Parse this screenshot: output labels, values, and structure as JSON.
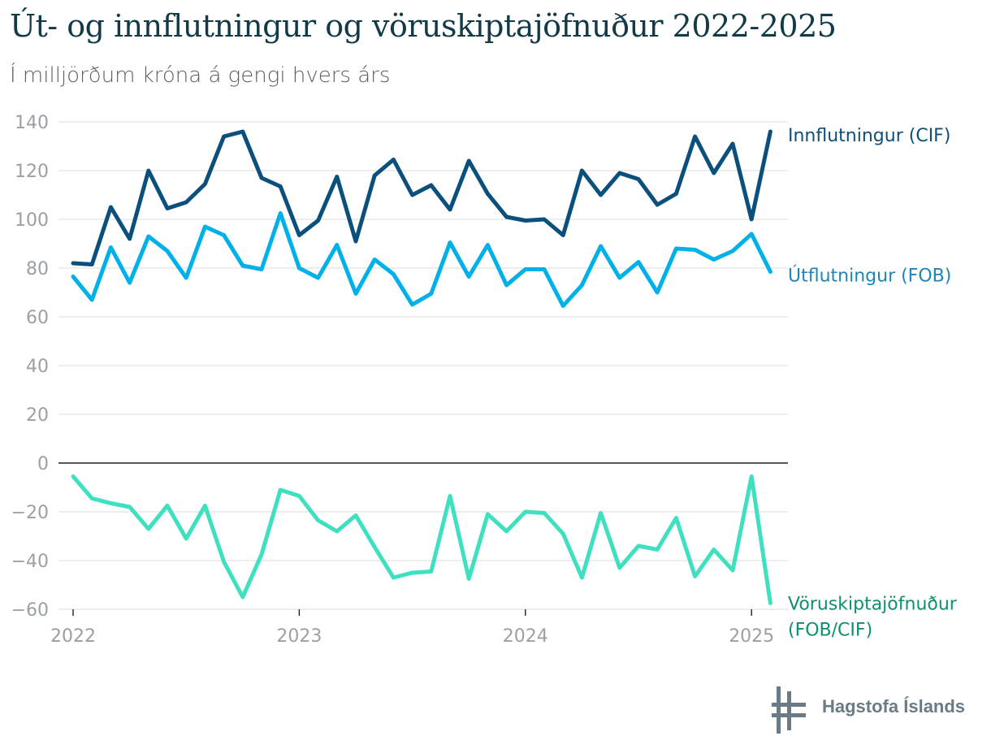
{
  "title": "Út- og innflutningur og vöruskiptajöfnuður 2022-2025",
  "subtitle": "Í milljörðum króna á gengi hvers árs",
  "logo": {
    "text": "Hagstofa Íslands",
    "icon": "hagstofa-logo-icon",
    "color": "#6a7b86"
  },
  "chart_data": {
    "type": "line",
    "title": "Út- og innflutningur og vöruskiptajöfnuður 2022-2025",
    "subtitle": "Í milljörðum króna á gengi hvers árs",
    "ylim": [
      -60,
      140
    ],
    "yticks": [
      140,
      120,
      100,
      80,
      60,
      40,
      20,
      0,
      -20,
      -40,
      -60
    ],
    "xticks": [
      {
        "label": "2022",
        "index": 0
      },
      {
        "label": "2023",
        "index": 12
      },
      {
        "label": "2024",
        "index": 24
      },
      {
        "label": "2025",
        "index": 36
      }
    ],
    "x_frequency": "monthly",
    "x_start": "2022-01",
    "grid": true,
    "legend": "right-end labels",
    "series": [
      {
        "name": "Innflutningur (CIF)",
        "color": "#0b4f7c",
        "label_color": "#0b4f7c",
        "values": [
          82,
          81.5,
          105,
          92,
          120,
          104.5,
          107,
          114.5,
          134,
          136,
          117,
          113.5,
          93.5,
          99.5,
          117.5,
          91,
          118,
          124.5,
          110,
          114,
          104,
          124,
          110.5,
          101,
          99.5,
          100,
          93.5,
          120,
          110,
          119,
          116.5,
          106,
          110.5,
          134,
          119,
          131,
          100,
          136
        ]
      },
      {
        "name": "Útflutningur (FOB)",
        "color": "#00b0e8",
        "label_color": "#1d86b8",
        "values": [
          76.5,
          67,
          88.5,
          74,
          93,
          87,
          76,
          97,
          93.5,
          81,
          79.5,
          102.5,
          80,
          76,
          89.5,
          69.5,
          83.5,
          77.5,
          65,
          69.5,
          90.5,
          76.5,
          89.5,
          73,
          79.5,
          79.5,
          64.5,
          73,
          89,
          76,
          82.5,
          70,
          88,
          87.5,
          83.5,
          87,
          94,
          78.5
        ]
      },
      {
        "name": "Vöruskiptajöfnuður (FOB/CIF)",
        "name_lines": [
          "Vöruskiptajöfnuður",
          "(FOB/CIF)"
        ],
        "color": "#3ee0c0",
        "label_color": "#0d9070",
        "values": [
          -5.5,
          -14.5,
          -16.5,
          -18,
          -27,
          -17.5,
          -31,
          -17.5,
          -40.5,
          -55,
          -37.5,
          -11,
          -13.5,
          -23.5,
          -28,
          -21.5,
          -34.5,
          -47,
          -45,
          -44.5,
          -13.5,
          -47.5,
          -21,
          -28,
          -20,
          -20.5,
          -29,
          -47,
          -20.5,
          -43,
          -34,
          -35.5,
          -22.5,
          -46.5,
          -35.5,
          -44,
          -5.5,
          -57.5
        ]
      }
    ]
  }
}
